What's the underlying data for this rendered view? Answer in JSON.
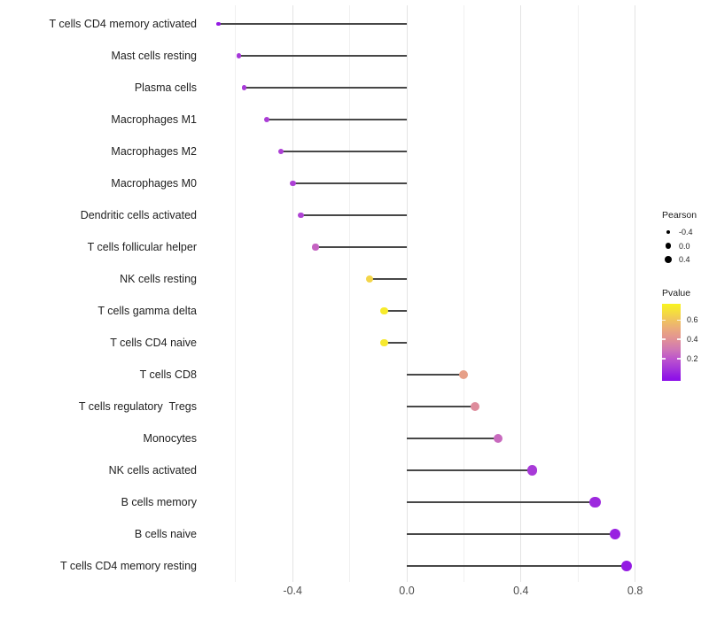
{
  "chart_data": {
    "type": "lollipop",
    "orientation": "horizontal",
    "title": "",
    "xlabel": "",
    "ylabel": "",
    "x_axis": {
      "range": [
        -0.683,
        0.861
      ],
      "major_ticks": [
        -0.4,
        0.0,
        0.4,
        0.8
      ],
      "major_tick_labels": [
        "-0.4",
        "0.0",
        "0.4",
        "0.8"
      ],
      "minor_ticks": [
        -0.6,
        -0.2,
        0.2,
        0.6
      ],
      "grid": "vertical-only"
    },
    "points": [
      {
        "label": "T cells CD4 memory activated",
        "pearson": -0.66,
        "pvalue": 0.02
      },
      {
        "label": "Mast cells resting",
        "pearson": -0.59,
        "pvalue": 0.1
      },
      {
        "label": "Plasma cells",
        "pearson": -0.57,
        "pvalue": 0.11
      },
      {
        "label": "Macrophages M1",
        "pearson": -0.49,
        "pvalue": 0.12
      },
      {
        "label": "Macrophages M2",
        "pearson": -0.44,
        "pvalue": 0.13
      },
      {
        "label": "Macrophages M0",
        "pearson": -0.4,
        "pvalue": 0.13
      },
      {
        "label": "Dendritic cells activated",
        "pearson": -0.37,
        "pvalue": 0.14
      },
      {
        "label": "T cells follicular helper",
        "pearson": -0.32,
        "pvalue": 0.24
      },
      {
        "label": "NK cells resting",
        "pearson": -0.13,
        "pvalue": 0.66
      },
      {
        "label": "T cells gamma delta",
        "pearson": -0.08,
        "pvalue": 0.74
      },
      {
        "label": "T cells CD4 naive",
        "pearson": -0.08,
        "pvalue": 0.73
      },
      {
        "label": "T cells CD8",
        "pearson": 0.2,
        "pvalue": 0.46
      },
      {
        "label": "T cells regulatory  Tregs",
        "pearson": 0.24,
        "pvalue": 0.38
      },
      {
        "label": "Monocytes",
        "pearson": 0.32,
        "pvalue": 0.26
      },
      {
        "label": "NK cells activated",
        "pearson": 0.44,
        "pvalue": 0.11
      },
      {
        "label": "B cells memory",
        "pearson": 0.66,
        "pvalue": 0.06
      },
      {
        "label": "B cells naive",
        "pearson": 0.73,
        "pvalue": 0.04
      },
      {
        "label": "T cells CD4 memory resting",
        "pearson": 0.77,
        "pvalue": 0.02
      }
    ]
  },
  "legend": {
    "size": {
      "title": "Pearson",
      "dot_color": "#000000",
      "entries": [
        {
          "label": "-0.4",
          "value": -0.4
        },
        {
          "label": "0.0",
          "value": 0.0
        },
        {
          "label": "0.4",
          "value": 0.4
        }
      ]
    },
    "color": {
      "title": "Pvalue",
      "domain": [
        -0.03,
        0.77
      ],
      "ticks": [
        {
          "label": "0.6",
          "value": 0.6
        },
        {
          "label": "0.4",
          "value": 0.4
        },
        {
          "label": "0.2",
          "value": 0.2
        }
      ],
      "stops": [
        {
          "value": -0.03,
          "color": "#8C0FE9"
        },
        {
          "value": 0.0,
          "color": "#9013E6"
        },
        {
          "value": 0.1,
          "color": "#A637D9"
        },
        {
          "value": 0.2,
          "color": "#BD55CC"
        },
        {
          "value": 0.3,
          "color": "#D078B4"
        },
        {
          "value": 0.4,
          "color": "#E19196"
        },
        {
          "value": 0.5,
          "color": "#EAA87E"
        },
        {
          "value": 0.6,
          "color": "#F0C35F"
        },
        {
          "value": 0.7,
          "color": "#F5E13A"
        },
        {
          "value": 0.77,
          "color": "#F9F320"
        }
      ]
    }
  },
  "style_colors": {
    "background": "#ffffff",
    "stem": "#474747",
    "grid_major": "#e4e4e4",
    "grid_minor": "#f0f0f0",
    "axis_text": "#4d4d4d",
    "label_text": "#212121"
  }
}
